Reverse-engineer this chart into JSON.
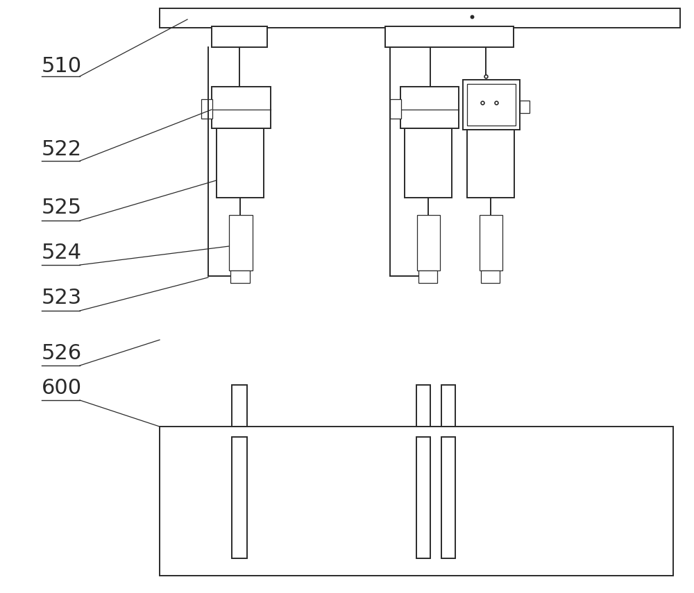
{
  "bg_color": "#ffffff",
  "line_color": "#2a2a2a",
  "lw": 1.4,
  "tlw": 0.9,
  "fig_w": 10.0,
  "fig_h": 8.55,
  "dpi": 100
}
